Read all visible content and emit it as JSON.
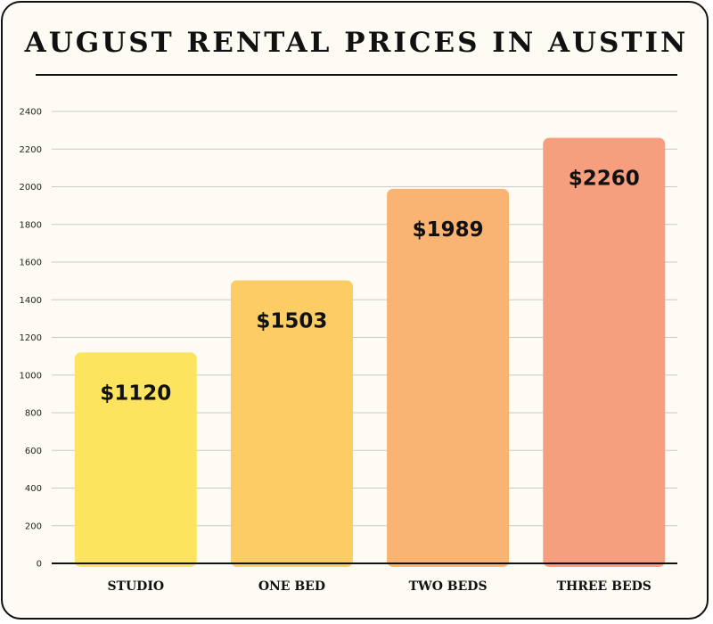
{
  "chart_data": {
    "type": "bar",
    "title": "AUGUST RENTAL PRICES IN AUSTIN",
    "categories": [
      "STUDIO",
      "ONE BED",
      "TWO BEDS",
      "THREE BEDS"
    ],
    "values": [
      1120,
      1503,
      1989,
      2260
    ],
    "data_labels": [
      "$1120",
      "$1503",
      "$1989",
      "$2260"
    ],
    "bar_colors": [
      "#fde45e",
      "#fbcd64",
      "#f9b373",
      "#f59f7e"
    ],
    "y_ticks": [
      0,
      200,
      400,
      600,
      800,
      1000,
      1200,
      1400,
      1600,
      1800,
      2000,
      2200,
      2400
    ],
    "ylim": [
      0,
      2400
    ],
    "grid": true,
    "xlabel": "",
    "ylabel": ""
  }
}
